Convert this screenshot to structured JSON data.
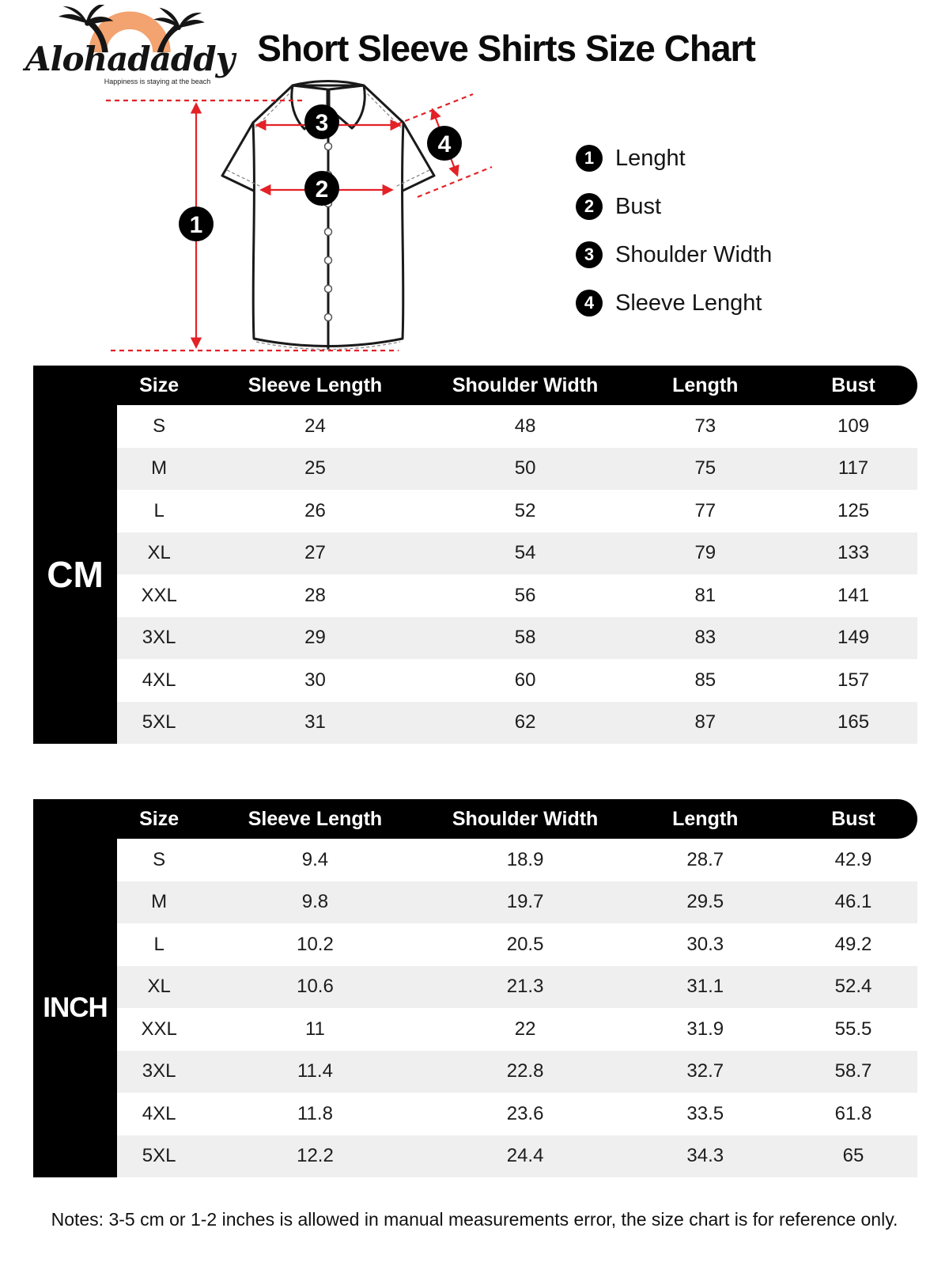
{
  "brand": {
    "name": "Alohadaddy",
    "tagline": "Happiness is staying at the beach"
  },
  "title": "Short Sleeve Shirts Size Chart",
  "diagram": {
    "markers": [
      "1",
      "2",
      "3",
      "4"
    ],
    "legend": [
      {
        "num": "1",
        "label": "Lenght"
      },
      {
        "num": "2",
        "label": "Bust"
      },
      {
        "num": "3",
        "label": "Shoulder Width"
      },
      {
        "num": "4",
        "label": "Sleeve Lenght"
      }
    ]
  },
  "colors": {
    "accent_red": "#e32127",
    "table_black": "#000000",
    "row_alt_gray": "#efefef",
    "logo_orange": "#f2a36f"
  },
  "cm_table": {
    "unit": "CM",
    "headers": [
      "Size",
      "Sleeve Length",
      "Shoulder Width",
      "Length",
      "Bust"
    ],
    "rows": [
      [
        "S",
        "24",
        "48",
        "73",
        "109"
      ],
      [
        "M",
        "25",
        "50",
        "75",
        "117"
      ],
      [
        "L",
        "26",
        "52",
        "77",
        "125"
      ],
      [
        "XL",
        "27",
        "54",
        "79",
        "133"
      ],
      [
        "XXL",
        "28",
        "56",
        "81",
        "141"
      ],
      [
        "3XL",
        "29",
        "58",
        "83",
        "149"
      ],
      [
        "4XL",
        "30",
        "60",
        "85",
        "157"
      ],
      [
        "5XL",
        "31",
        "62",
        "87",
        "165"
      ]
    ]
  },
  "inch_table": {
    "unit": "INCH",
    "headers": [
      "Size",
      "Sleeve Length",
      "Shoulder Width",
      "Length",
      "Bust"
    ],
    "rows": [
      [
        "S",
        "9.4",
        "18.9",
        "28.7",
        "42.9"
      ],
      [
        "M",
        "9.8",
        "19.7",
        "29.5",
        "46.1"
      ],
      [
        "L",
        "10.2",
        "20.5",
        "30.3",
        "49.2"
      ],
      [
        "XL",
        "10.6",
        "21.3",
        "31.1",
        "52.4"
      ],
      [
        "XXL",
        "11",
        "22",
        "31.9",
        "55.5"
      ],
      [
        "3XL",
        "11.4",
        "22.8",
        "32.7",
        "58.7"
      ],
      [
        "4XL",
        "11.8",
        "23.6",
        "33.5",
        "61.8"
      ],
      [
        "5XL",
        "12.2",
        "24.4",
        "34.3",
        "65"
      ]
    ]
  },
  "note": "Notes: 3-5 cm or 1-2 inches is allowed in manual measurements error, the size chart is for reference only."
}
